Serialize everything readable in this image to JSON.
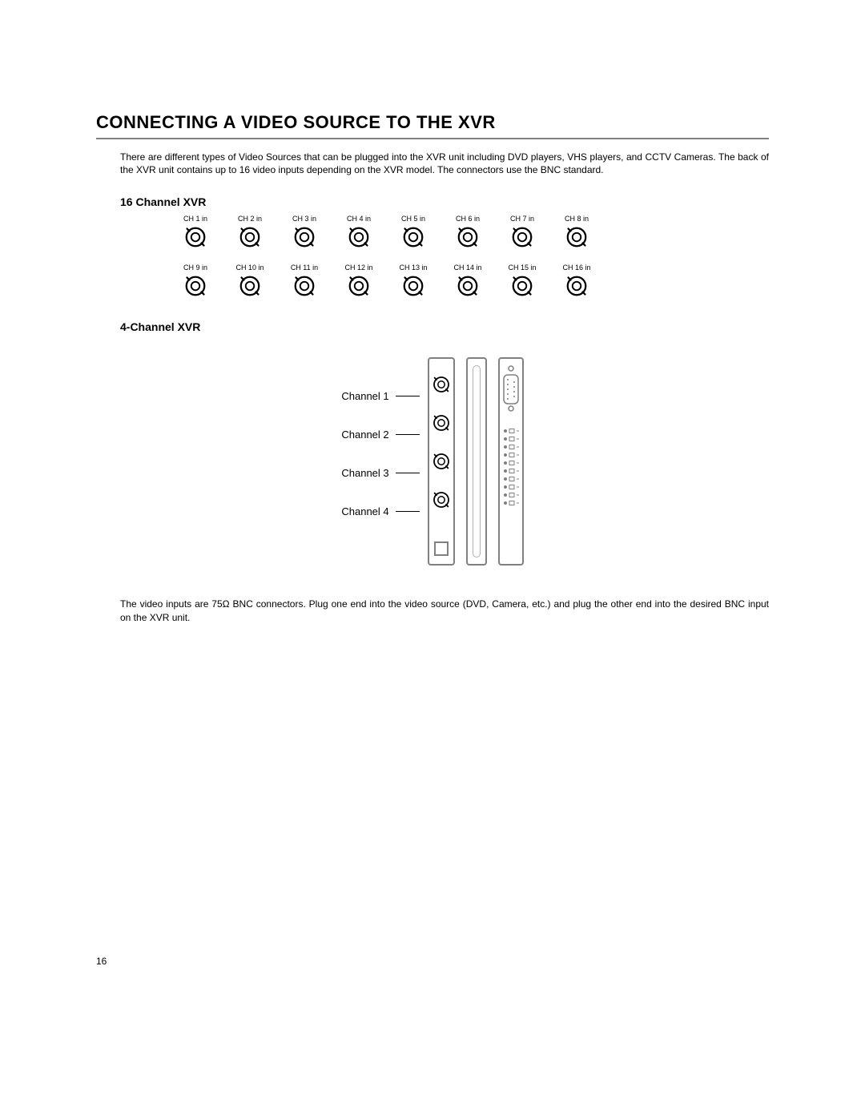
{
  "heading": "CONNECTING A VIDEO SOURCE TO THE XVR",
  "intro": "There are different types of Video Sources that can be plugged into the XVR unit including DVD players, VHS players, and CCTV Cameras. The back of the XVR unit contains up to 16 video inputs depending on the XVR model. The connectors use the BNC standard.",
  "section16": {
    "title": "16 Channel XVR",
    "labels": [
      "CH 1 in",
      "CH 2 in",
      "CH 3 in",
      "CH 4 in",
      "CH 5 in",
      "CH 6 in",
      "CH 7 in",
      "CH 8 in",
      "CH 9 in",
      "CH 10 in",
      "CH 11 in",
      "CH 12 in",
      "CH 13 in",
      "CH 14 in",
      "CH 15 in",
      "CH 16 in"
    ]
  },
  "section4": {
    "title": "4-Channel XVR",
    "labels": [
      "Channel 1",
      "Channel 2",
      "Channel 3",
      "Channel 4"
    ]
  },
  "outro": "The video inputs are 75Ω BNC connectors. Plug one end into the video source (DVD, Camera, etc.) and plug the other end into the desired BNC input on the XVR unit.",
  "pageNumber": "16",
  "style": {
    "bnc_stroke": "#000000",
    "panel_stroke": "#808080",
    "background": "#ffffff",
    "text_color": "#000000",
    "heading_fontsize": 22,
    "body_fontsize": 12,
    "subheading_fontsize": 14,
    "chlabel_fontsize": 9
  }
}
